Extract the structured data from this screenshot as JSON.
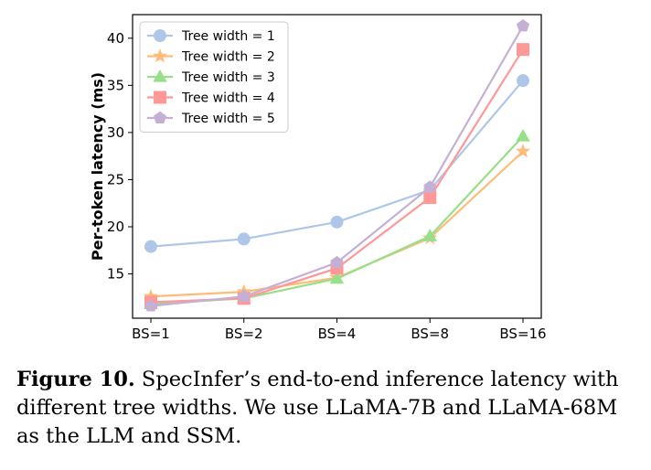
{
  "chart_data": {
    "type": "line",
    "categories": [
      "BS=1",
      "BS=2",
      "BS=4",
      "BS=8",
      "BS=16"
    ],
    "ylabel": "Per-token latency (ms)",
    "xlabel": "",
    "ylim": [
      10.3,
      42.5
    ],
    "yticks": [
      15,
      20,
      25,
      30,
      35,
      40
    ],
    "legend_position": "top-left",
    "series": [
      {
        "name": "Tree width = 1",
        "marker": "circle",
        "color": "#aec7e8",
        "values": [
          17.9,
          18.7,
          20.5,
          23.9,
          35.5
        ]
      },
      {
        "name": "Tree width = 2",
        "marker": "star",
        "color": "#ffbb78",
        "values": [
          12.6,
          13.1,
          14.6,
          18.8,
          28.0
        ]
      },
      {
        "name": "Tree width = 3",
        "marker": "triangle",
        "color": "#98df8a",
        "values": [
          11.8,
          12.4,
          14.5,
          19.0,
          29.6
        ]
      },
      {
        "name": "Tree width = 4",
        "marker": "square",
        "color": "#ff9896",
        "values": [
          12.0,
          12.4,
          15.6,
          23.1,
          38.8
        ]
      },
      {
        "name": "Tree width = 5",
        "marker": "pentagon",
        "color": "#c5b0d5",
        "values": [
          11.6,
          12.6,
          16.2,
          24.2,
          41.3
        ]
      }
    ]
  },
  "caption": {
    "label": "Figure 10.",
    "text": " SpecInfer’s end-to-end inference latency with different tree widths. We use LLaMA-7B and LLaMA-68M as the LLM and SSM."
  }
}
